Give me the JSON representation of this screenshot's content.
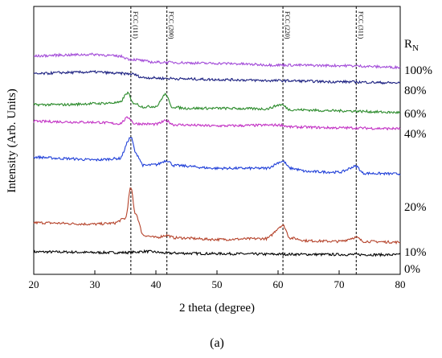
{
  "chart_data": {
    "type": "line",
    "xlabel": "2 theta (degree)",
    "ylabel": "Intensity (Arb. Units)",
    "panel_label": "(a)",
    "xlim": [
      20,
      80
    ],
    "xticks": [
      20,
      30,
      40,
      50,
      60,
      70,
      80
    ],
    "yticks_shown": false,
    "grid": false,
    "legend_title": "R",
    "legend_title_subscript": "N",
    "reference_lines": [
      {
        "label": "FCC (111)",
        "x": 35.9
      },
      {
        "label": "FCC (200)",
        "x": 41.8
      },
      {
        "label": "FCC (220)",
        "x": 60.8
      },
      {
        "label": "FCC (311)",
        "x": 72.8
      }
    ],
    "series": [
      {
        "name": "0%",
        "color": "#000000",
        "points": [
          [
            20,
            0.05
          ],
          [
            25,
            0.0
          ],
          [
            30,
            -0.2
          ],
          [
            35,
            -0.2
          ],
          [
            38.5,
            0.2
          ],
          [
            42,
            -0.4
          ],
          [
            50,
            -0.6
          ],
          [
            60,
            -0.8
          ],
          [
            70,
            -0.9
          ],
          [
            80,
            -1.0
          ]
        ]
      },
      {
        "name": "10%",
        "color": "#b5432b",
        "points": [
          [
            20,
            10.5
          ],
          [
            30,
            10.0
          ],
          [
            33,
            10.3
          ],
          [
            35,
            12.0
          ],
          [
            35.9,
            23.0
          ],
          [
            36.6,
            14.0
          ],
          [
            38,
            6.0
          ],
          [
            40,
            5.2
          ],
          [
            41.8,
            6.0
          ],
          [
            43,
            5.1
          ],
          [
            50,
            4.5
          ],
          [
            58,
            4.8
          ],
          [
            60.8,
            9.5
          ],
          [
            62,
            5.0
          ],
          [
            65,
            4.0
          ],
          [
            70,
            3.8
          ],
          [
            72.8,
            5.2
          ],
          [
            74,
            3.8
          ],
          [
            80,
            3.5
          ]
        ]
      },
      {
        "name": "20%",
        "color": "#1f3fd8",
        "points": [
          [
            20,
            34.0
          ],
          [
            25,
            33.5
          ],
          [
            30,
            33.0
          ],
          [
            34,
            33.5
          ],
          [
            35.9,
            41.0
          ],
          [
            36.8,
            35.0
          ],
          [
            38,
            31.0
          ],
          [
            40,
            31.3
          ],
          [
            41.8,
            32.8
          ],
          [
            43,
            31.0
          ],
          [
            50,
            30.0
          ],
          [
            58,
            30.0
          ],
          [
            60.8,
            32.5
          ],
          [
            62,
            30.0
          ],
          [
            65,
            28.8
          ],
          [
            70,
            28.6
          ],
          [
            72.8,
            30.7
          ],
          [
            74,
            28.2
          ],
          [
            80,
            28.0
          ]
        ]
      },
      {
        "name": "40%",
        "color": "#c231c4",
        "points": [
          [
            20,
            46.8
          ],
          [
            30,
            46.5
          ],
          [
            34,
            46.0
          ],
          [
            35.5,
            48.2
          ],
          [
            36.5,
            46.0
          ],
          [
            40,
            45.8
          ],
          [
            41.7,
            47.0
          ],
          [
            43,
            45.6
          ],
          [
            50,
            45.2
          ],
          [
            60.5,
            45.5
          ],
          [
            62,
            44.8
          ],
          [
            70,
            44.5
          ],
          [
            80,
            44.2
          ]
        ]
      },
      {
        "name": "60%",
        "color": "#2a8a2a",
        "points": [
          [
            20,
            52.8
          ],
          [
            25,
            52.8
          ],
          [
            30,
            53.2
          ],
          [
            34,
            53.5
          ],
          [
            35.4,
            57.0
          ],
          [
            36.2,
            53.5
          ],
          [
            38,
            52.0
          ],
          [
            40,
            52.2
          ],
          [
            41.6,
            56.5
          ],
          [
            42.6,
            52.0
          ],
          [
            45,
            51.5
          ],
          [
            50,
            51.5
          ],
          [
            58,
            51.3
          ],
          [
            60.5,
            52.8
          ],
          [
            62,
            51.0
          ],
          [
            70,
            50.6
          ],
          [
            80,
            50.0
          ]
        ]
      },
      {
        "name": "80%",
        "color": "#1a1f80",
        "points": [
          [
            20,
            63.8
          ],
          [
            25,
            64.3
          ],
          [
            30,
            64.5
          ],
          [
            34,
            64.0
          ],
          [
            36,
            63.8
          ],
          [
            38,
            62.5
          ],
          [
            42,
            62.2
          ],
          [
            45,
            62.0
          ],
          [
            50,
            61.8
          ],
          [
            60,
            61.4
          ],
          [
            70,
            61.0
          ],
          [
            80,
            60.6
          ]
        ]
      },
      {
        "name": "100%",
        "color": "#a24ad8",
        "points": [
          [
            20,
            70.2
          ],
          [
            25,
            70.6
          ],
          [
            30,
            70.8
          ],
          [
            34,
            70.2
          ],
          [
            36,
            69.0
          ],
          [
            40,
            68.0
          ],
          [
            50,
            67.6
          ],
          [
            60,
            67.0
          ],
          [
            70,
            66.8
          ],
          [
            80,
            66.2
          ]
        ]
      }
    ],
    "legend_labels": [
      "100%",
      "80%",
      "60%",
      "40%",
      "20%",
      "10%",
      "0%"
    ]
  }
}
